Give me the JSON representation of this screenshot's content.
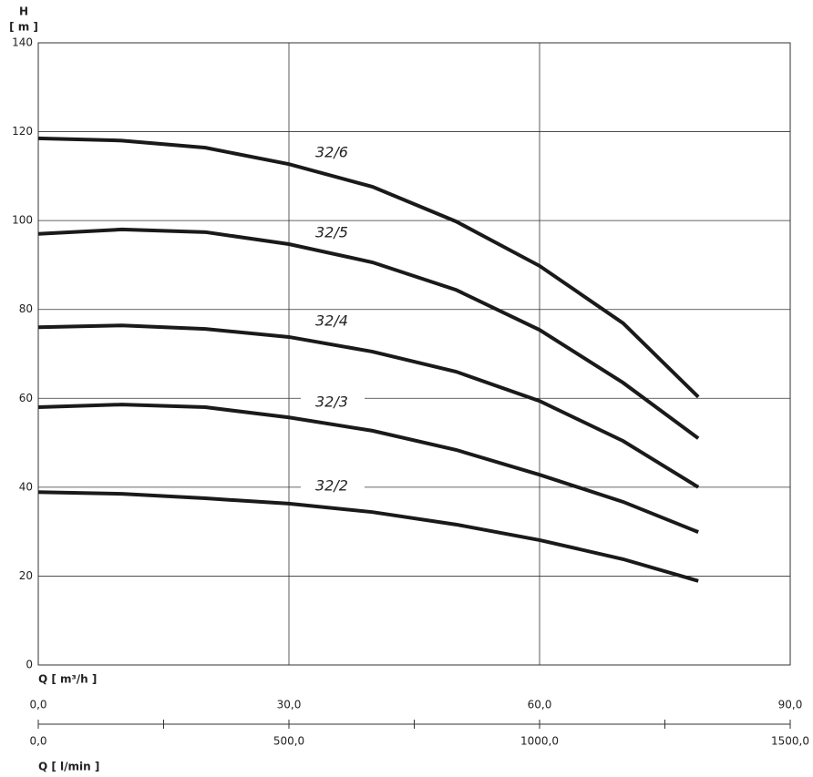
{
  "chart_data": {
    "type": "line",
    "y_axis_title": "H",
    "y_axis_unit": "[ m ]",
    "x_axis_title": "Q [ m³/h ]",
    "x2_axis_title": "Q [ l/min ]",
    "x": [
      0,
      10,
      20,
      30,
      40,
      50,
      60,
      70,
      79
    ],
    "xlim": [
      0,
      90
    ],
    "xticks": [
      {
        "value": 0,
        "label": "0,0"
      },
      {
        "value": 30,
        "label": "30,0"
      },
      {
        "value": 60,
        "label": "60,0"
      },
      {
        "value": 90,
        "label": "90,0"
      }
    ],
    "x2lim": [
      0,
      1500
    ],
    "x2ticks": [
      {
        "value": 0,
        "label": "0,0"
      },
      {
        "value": 500,
        "label": "500,0"
      },
      {
        "value": 1000,
        "label": "1000,0"
      },
      {
        "value": 1500,
        "label": "1500,0"
      }
    ],
    "x2minorticks": [
      250,
      750,
      1250
    ],
    "ylim": [
      0,
      140
    ],
    "yticks": [
      0,
      20,
      40,
      60,
      80,
      100,
      120,
      140
    ],
    "grid": true,
    "series": [
      {
        "name": "32/6",
        "color": "#1a1a1a",
        "values": [
          118.5,
          118,
          116.4,
          112.7,
          107.6,
          99.8,
          89.8,
          76.9,
          60.3
        ]
      },
      {
        "name": "32/5",
        "color": "#1a1a1a",
        "values": [
          97,
          98,
          97.4,
          94.7,
          90.6,
          84.4,
          75.4,
          63.5,
          51
        ]
      },
      {
        "name": "32/4",
        "color": "#1a1a1a",
        "values": [
          76,
          76.4,
          75.6,
          73.8,
          70.5,
          66,
          59.4,
          50.4,
          40
        ]
      },
      {
        "name": "32/3",
        "color": "#1a1a1a",
        "values": [
          58,
          58.6,
          58,
          55.7,
          52.7,
          48.4,
          42.8,
          36.7,
          29.9
        ]
      },
      {
        "name": "32/2",
        "color": "#1a1a1a",
        "values": [
          38.9,
          38.5,
          37.5,
          36.3,
          34.4,
          31.6,
          28.1,
          23.8,
          18.9
        ]
      }
    ]
  }
}
